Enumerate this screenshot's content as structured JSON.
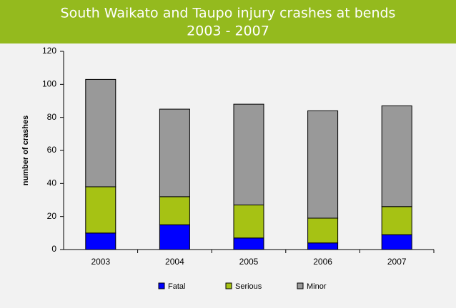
{
  "chart_data": {
    "type": "stacked_bar",
    "title": [
      "South Waikato and Taupo injury crashes at bends",
      "2003 - 2007"
    ],
    "y_label": "number of crashes",
    "categories": [
      "2003",
      "2004",
      "2005",
      "2006",
      "2007"
    ],
    "series": [
      {
        "name": "Fatal",
        "color": "#0000ff",
        "values": [
          10,
          15,
          7,
          4,
          9
        ]
      },
      {
        "name": "Serious",
        "color": "#a6c214",
        "values": [
          28,
          17,
          20,
          15,
          17
        ]
      },
      {
        "name": "Minor",
        "color": "#999999",
        "values": [
          65,
          53,
          61,
          65,
          61
        ]
      }
    ],
    "ylim": [
      0,
      120
    ],
    "yticks": [
      0,
      20,
      40,
      60,
      80,
      100,
      120
    ],
    "grid": false,
    "legend": "bottom"
  }
}
